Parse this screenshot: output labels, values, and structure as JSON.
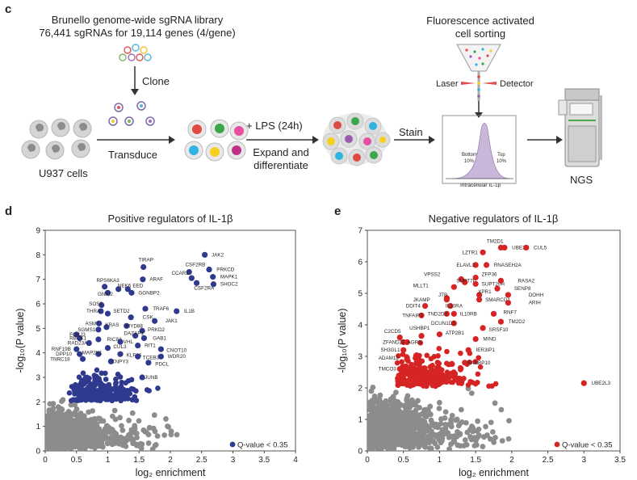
{
  "panel_c": {
    "letter": "c",
    "library_line1": "Brunello genome-wide sgRNA library",
    "library_line2": "76,441 sgRNAs for 19,114 genes (4/gene)",
    "clone": "Clone",
    "transduce": "Transduce",
    "cells": "U937 cells",
    "lps": "+ LPS (24h)",
    "expand_line1": "Expand and",
    "expand_line2": "differentiate",
    "stain": "Stain",
    "facs_line1": "Fluorescence activated",
    "facs_line2": "cell sorting",
    "laser": "Laser",
    "detector": "Detector",
    "bottom": "Bottom",
    "bottom_pct": "10%",
    "top": "Top",
    "top_pct": "10%",
    "hist_xlabel": "Intracellular IL-1β",
    "ngs": "NGS",
    "colors": {
      "ink": "#231f20",
      "arrow": "#333333",
      "hist": "#c9b7d9"
    }
  },
  "chart_data": [
    {
      "panel": "d",
      "type": "scatter",
      "title": "Positive regulators of IL-1β",
      "xlabel": "log₂ enrichment",
      "ylabel": "-log₁₀(P value)",
      "xlim": [
        0,
        4
      ],
      "ylim": [
        0,
        9
      ],
      "xticks": [
        "0",
        "0.5",
        "1",
        "1.5",
        "2",
        "2.5",
        "3",
        "3.5",
        "4"
      ],
      "yticks": [
        "0",
        "1",
        "2",
        "3",
        "4",
        "5",
        "6",
        "7",
        "8",
        "9"
      ],
      "legend": "Q-value < 0.35",
      "legend_position": "bottom-right",
      "significant_color": "#2f3a8f",
      "background_color": "#8c8c8c",
      "labeled_points": [
        {
          "gene": "JAK2",
          "x": 2.55,
          "y": 8.0,
          "lx": 2.62,
          "ly": 8.0,
          "a": "start"
        },
        {
          "gene": "TIRAP",
          "x": 1.57,
          "y": 7.5,
          "lx": 1.45,
          "ly": 7.8,
          "a": "start"
        },
        {
          "gene": "CSF2RB",
          "x": 2.3,
          "y": 7.3,
          "lx": 2.2,
          "ly": 7.6,
          "a": "start"
        },
        {
          "gene": "PRKCD",
          "x": 2.62,
          "y": 7.4,
          "lx": 2.7,
          "ly": 7.4,
          "a": "start"
        },
        {
          "gene": "CCAR2",
          "x": 2.34,
          "y": 7.05,
          "lx": 1.98,
          "ly": 7.25,
          "a": "start"
        },
        {
          "gene": "MAPK1",
          "x": 2.68,
          "y": 7.1,
          "lx": 2.76,
          "ly": 7.1,
          "a": "start"
        },
        {
          "gene": "ARAF",
          "x": 1.56,
          "y": 7.0,
          "lx": 1.63,
          "ly": 7.0,
          "a": "start"
        },
        {
          "gene": "SHOC2",
          "x": 2.69,
          "y": 6.8,
          "lx": 2.76,
          "ly": 6.8,
          "a": "start"
        },
        {
          "gene": "CSF2RA",
          "x": 2.42,
          "y": 6.85,
          "lx": 2.34,
          "ly": 6.65,
          "a": "start"
        },
        {
          "gene": "RPS6KA3",
          "x": 0.95,
          "y": 6.7,
          "lx": 0.78,
          "ly": 6.95,
          "a": "start"
        },
        {
          "gene": "NEK6",
          "x": 1.17,
          "y": 6.6,
          "lx": 1.12,
          "ly": 6.75,
          "a": "start"
        },
        {
          "gene": "EED",
          "x": 1.32,
          "y": 6.6,
          "lx": 1.36,
          "ly": 6.75,
          "a": "start"
        },
        {
          "gene": "GNAI2",
          "x": 1.0,
          "y": 6.45,
          "lx": 0.8,
          "ly": 6.4,
          "a": "start"
        },
        {
          "gene": "GGNBP2",
          "x": 1.38,
          "y": 6.45,
          "lx": 1.45,
          "ly": 6.45,
          "a": "start"
        },
        {
          "gene": "SOS2",
          "x": 0.9,
          "y": 5.95,
          "lx": 0.66,
          "ly": 6.0,
          "a": "start"
        },
        {
          "gene": "THRA",
          "x": 0.89,
          "y": 5.7,
          "lx": 0.62,
          "ly": 5.7,
          "a": "start"
        },
        {
          "gene": "SETD2",
          "x": 1.0,
          "y": 5.6,
          "lx": 1.05,
          "ly": 5.7,
          "a": "start"
        },
        {
          "gene": "TRAF6",
          "x": 1.6,
          "y": 5.8,
          "lx": 1.68,
          "ly": 5.8,
          "a": "start"
        },
        {
          "gene": "IL1B",
          "x": 2.1,
          "y": 5.7,
          "lx": 2.18,
          "ly": 5.7,
          "a": "start"
        },
        {
          "gene": "CSK",
          "x": 1.37,
          "y": 5.45,
          "lx": 1.52,
          "ly": 5.45,
          "a": "start"
        },
        {
          "gene": "JAK1",
          "x": 1.75,
          "y": 5.3,
          "lx": 1.88,
          "ly": 5.3,
          "a": "start"
        },
        {
          "gene": "ASMT",
          "x": 0.86,
          "y": 5.2,
          "lx": 0.6,
          "ly": 5.2,
          "a": "start"
        },
        {
          "gene": "KRAS",
          "x": 0.98,
          "y": 5.05,
          "lx": 0.92,
          "ly": 5.15,
          "a": "start"
        },
        {
          "gene": "MYD88",
          "x": 1.3,
          "y": 5.1,
          "lx": 1.25,
          "ly": 5.1,
          "a": "start"
        },
        {
          "gene": "SGMS1",
          "x": 0.85,
          "y": 4.95,
          "lx": 0.48,
          "ly": 4.95,
          "a": "start"
        },
        {
          "gene": "PRKD2",
          "x": 1.55,
          "y": 4.9,
          "lx": 1.6,
          "ly": 4.95,
          "a": "start"
        },
        {
          "gene": "DAZAP1",
          "x": 1.44,
          "y": 4.7,
          "lx": 1.22,
          "ly": 4.8,
          "a": "start"
        },
        {
          "gene": "FOXJ3",
          "x": 0.5,
          "y": 4.75,
          "lx": 0.35,
          "ly": 4.75,
          "a": "start"
        },
        {
          "gene": "RBCK1",
          "x": 0.55,
          "y": 4.6,
          "lx": 0.35,
          "ly": 4.6,
          "a": "start"
        },
        {
          "gene": "RIC8A",
          "x": 0.85,
          "y": 4.55,
          "lx": 0.95,
          "ly": 4.55,
          "a": "start"
        },
        {
          "gene": "GAB1",
          "x": 1.58,
          "y": 4.6,
          "lx": 1.68,
          "ly": 4.6,
          "a": "start"
        },
        {
          "gene": "RAD23A",
          "x": 0.7,
          "y": 4.4,
          "lx": 0.32,
          "ly": 4.4,
          "a": "start"
        },
        {
          "gene": "VHL",
          "x": 1.2,
          "y": 4.45,
          "lx": 1.21,
          "ly": 4.45,
          "a": "start"
        },
        {
          "gene": "RIT1",
          "x": 1.48,
          "y": 4.3,
          "lx": 1.55,
          "ly": 4.3,
          "a": "start"
        },
        {
          "gene": "RNF19B",
          "x": 0.5,
          "y": 4.15,
          "lx": 0.06,
          "ly": 4.15,
          "a": "start"
        },
        {
          "gene": "CUL3",
          "x": 1.0,
          "y": 4.2,
          "lx": 1.05,
          "ly": 4.25,
          "a": "start"
        },
        {
          "gene": "CNOT10",
          "x": 1.85,
          "y": 4.15,
          "lx": 1.9,
          "ly": 4.1,
          "a": "start"
        },
        {
          "gene": "DPP10",
          "x": 0.55,
          "y": 3.95,
          "lx": 0.13,
          "ly": 3.95,
          "a": "start"
        },
        {
          "gene": "MAP2K1",
          "x": 0.85,
          "y": 3.95,
          "lx": 0.55,
          "ly": 4.0,
          "a": "start"
        },
        {
          "gene": "KLF16",
          "x": 1.2,
          "y": 3.95,
          "lx": 1.26,
          "ly": 3.9,
          "a": "start"
        },
        {
          "gene": "TCEB3",
          "x": 1.48,
          "y": 3.85,
          "lx": 1.52,
          "ly": 3.8,
          "a": "start"
        },
        {
          "gene": "WDR20",
          "x": 1.85,
          "y": 3.85,
          "lx": 1.92,
          "ly": 3.85,
          "a": "start"
        },
        {
          "gene": "TNRC18",
          "x": 0.6,
          "y": 3.75,
          "lx": 0.04,
          "ly": 3.75,
          "a": "start"
        },
        {
          "gene": "CNPY3",
          "x": 1.05,
          "y": 3.65,
          "lx": 1.02,
          "ly": 3.65,
          "a": "start"
        },
        {
          "gene": "PDCL",
          "x": 1.65,
          "y": 3.6,
          "lx": 1.72,
          "ly": 3.55,
          "a": "start"
        },
        {
          "gene": "JUNB",
          "x": 1.55,
          "y": 3.0,
          "lx": 1.55,
          "ly": 3.0,
          "a": "start"
        }
      ]
    },
    {
      "panel": "e",
      "type": "scatter",
      "title": "Negative regulators of IL-1β",
      "xlabel": "log₂ enrichment",
      "ylabel": "-log₁₀(P value)",
      "xlim": [
        0,
        3.5
      ],
      "ylim": [
        0,
        7
      ],
      "xticks": [
        "0",
        "0.5",
        "1",
        "1.5",
        "2",
        "2.5",
        "3",
        "3.5"
      ],
      "yticks": [
        "0",
        "1",
        "2",
        "3",
        "4",
        "5",
        "6",
        "7"
      ],
      "legend": "Q-value < 0.35",
      "legend_position": "bottom-right",
      "significant_color": "#d62424",
      "background_color": "#8c8c8c",
      "labeled_points": [
        {
          "gene": "TM2D1",
          "x": 1.85,
          "y": 6.45,
          "lx": 1.62,
          "ly": 6.65,
          "a": "start"
        },
        {
          "gene": "UBE2F",
          "x": 1.9,
          "y": 6.45,
          "lx": 1.97,
          "ly": 6.45,
          "a": "start"
        },
        {
          "gene": "CUL5",
          "x": 2.2,
          "y": 6.45,
          "lx": 2.27,
          "ly": 6.45,
          "a": "start"
        },
        {
          "gene": "LZTR1",
          "x": 1.6,
          "y": 6.3,
          "lx": 1.28,
          "ly": 6.3,
          "a": "start"
        },
        {
          "gene": "ELAVL1",
          "x": 1.5,
          "y": 5.9,
          "lx": 1.2,
          "ly": 5.9,
          "a": "start"
        },
        {
          "gene": "RNASEH2A",
          "x": 1.65,
          "y": 5.9,
          "lx": 1.72,
          "ly": 5.9,
          "a": "start"
        },
        {
          "gene": "VPSS2",
          "x": 1.3,
          "y": 5.45,
          "lx": 0.75,
          "ly": 5.6,
          "a": "start"
        },
        {
          "gene": "ZFP36",
          "x": 1.5,
          "y": 5.5,
          "lx": 1.55,
          "ly": 5.6,
          "a": "start"
        },
        {
          "gene": "SUPT7L",
          "x": 1.35,
          "y": 5.35,
          "lx": 1.2,
          "ly": 5.4,
          "a": "start"
        },
        {
          "gene": "SUPT20H",
          "x": 1.5,
          "y": 5.3,
          "lx": 1.55,
          "ly": 5.3,
          "a": "start"
        },
        {
          "gene": "RASA2",
          "x": 1.85,
          "y": 5.4,
          "lx": 2.05,
          "ly": 5.4,
          "a": "start"
        },
        {
          "gene": "MLLT1",
          "x": 1.2,
          "y": 5.2,
          "lx": 0.6,
          "ly": 5.25,
          "a": "start"
        },
        {
          "gene": "SENP8",
          "x": 1.8,
          "y": 5.15,
          "lx": 2.0,
          "ly": 5.15,
          "a": "start"
        },
        {
          "gene": "XPR1",
          "x": 1.55,
          "y": 4.95,
          "lx": 1.5,
          "ly": 5.05,
          "a": "start"
        },
        {
          "gene": "DOHH",
          "x": 1.95,
          "y": 4.95,
          "lx": 2.2,
          "ly": 4.95,
          "a": "start"
        },
        {
          "gene": "JTB",
          "x": 1.1,
          "y": 4.85,
          "lx": 0.95,
          "ly": 4.95,
          "a": "start"
        },
        {
          "gene": "JKAMP",
          "x": 1.1,
          "y": 4.8,
          "lx": 0.6,
          "ly": 4.8,
          "a": "start"
        },
        {
          "gene": "SMARCD1",
          "x": 1.55,
          "y": 4.8,
          "lx": 1.6,
          "ly": 4.8,
          "a": "start"
        },
        {
          "gene": "ARIH",
          "x": 1.95,
          "y": 4.7,
          "lx": 2.2,
          "ly": 4.7,
          "a": "start"
        },
        {
          "gene": "DDIT4",
          "x": 0.8,
          "y": 4.6,
          "lx": 0.5,
          "ly": 4.6,
          "a": "start"
        },
        {
          "gene": "IL10RA",
          "x": 1.15,
          "y": 4.6,
          "lx": 1.05,
          "ly": 4.6,
          "a": "start"
        },
        {
          "gene": "RNF7",
          "x": 1.75,
          "y": 4.35,
          "lx": 1.85,
          "ly": 4.4,
          "a": "start"
        },
        {
          "gene": "TND2D3",
          "x": 1.1,
          "y": 4.35,
          "lx": 0.8,
          "ly": 4.35,
          "a": "start"
        },
        {
          "gene": "IL10RB",
          "x": 1.2,
          "y": 4.35,
          "lx": 1.25,
          "ly": 4.35,
          "a": "start"
        },
        {
          "gene": "TNFAIP3",
          "x": 0.75,
          "y": 4.3,
          "lx": 0.45,
          "ly": 4.3,
          "a": "start"
        },
        {
          "gene": "TM2D2",
          "x": 1.85,
          "y": 4.1,
          "lx": 1.92,
          "ly": 4.1,
          "a": "start"
        },
        {
          "gene": "DCUN1D3",
          "x": 1.2,
          "y": 4.05,
          "lx": 0.85,
          "ly": 4.05,
          "a": "start"
        },
        {
          "gene": "SRSF10",
          "x": 1.6,
          "y": 3.9,
          "lx": 1.65,
          "ly": 3.85,
          "a": "start"
        },
        {
          "gene": "USHBP1",
          "x": 0.75,
          "y": 3.65,
          "lx": 0.55,
          "ly": 3.9,
          "a": "start"
        },
        {
          "gene": "C2CD5",
          "x": 0.45,
          "y": 3.6,
          "lx": 0.2,
          "ly": 3.8,
          "a": "start"
        },
        {
          "gene": "ATP2B1",
          "x": 1.0,
          "y": 3.7,
          "lx": 1.05,
          "ly": 3.75,
          "a": "start"
        },
        {
          "gene": "MIND",
          "x": 1.5,
          "y": 3.55,
          "lx": 1.57,
          "ly": 3.55,
          "a": "start"
        },
        {
          "gene": "ZFAND2B",
          "x": 0.5,
          "y": 3.45,
          "lx": 0.18,
          "ly": 3.45,
          "a": "start"
        },
        {
          "gene": "AGRN",
          "x": 0.55,
          "y": 3.45,
          "lx": 0.52,
          "ly": 3.45,
          "a": "start"
        },
        {
          "gene": "SH3GL1",
          "x": 0.5,
          "y": 3.2,
          "lx": 0.15,
          "ly": 3.2,
          "a": "start"
        },
        {
          "gene": "IER3IP1",
          "x": 1.4,
          "y": 3.2,
          "lx": 1.47,
          "ly": 3.2,
          "a": "start"
        },
        {
          "gene": "ADAM12",
          "x": 0.55,
          "y": 2.95,
          "lx": 0.12,
          "ly": 2.95,
          "a": "start"
        },
        {
          "gene": "RANBP10",
          "x": 1.35,
          "y": 2.8,
          "lx": 1.35,
          "ly": 2.8,
          "a": "start"
        },
        {
          "gene": "TMCO3",
          "x": 0.45,
          "y": 2.6,
          "lx": 0.12,
          "ly": 2.6,
          "a": "start"
        },
        {
          "gene": "UBE2L3",
          "x": 3.0,
          "y": 2.15,
          "lx": 3.07,
          "ly": 2.15,
          "a": "start"
        }
      ]
    }
  ]
}
